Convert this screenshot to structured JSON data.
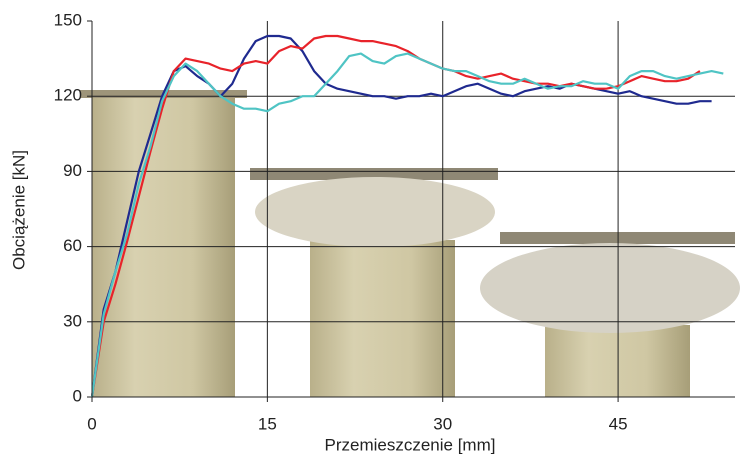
{
  "chart_data": {
    "type": "line",
    "xlabel": "Przemieszczenie [mm]",
    "ylabel": "Obciążenie [kN]",
    "x": [
      0,
      1,
      2,
      3,
      4,
      5,
      6,
      7,
      8,
      9,
      10,
      11,
      12,
      13,
      14,
      15,
      16,
      17,
      18,
      19,
      20,
      21,
      22,
      23,
      24,
      25,
      26,
      27,
      28,
      29,
      30,
      31,
      32,
      33,
      34,
      35,
      36,
      37,
      38,
      39,
      40,
      41,
      42,
      43,
      44,
      45,
      46,
      47,
      48,
      49,
      50,
      51,
      52,
      53,
      54,
      55
    ],
    "series": [
      {
        "color": "#1f2a8f",
        "values": [
          0,
          35,
          50,
          70,
          90,
          105,
          120,
          130,
          132,
          128,
          125,
          120,
          125,
          135,
          142,
          144,
          144,
          143,
          138,
          130,
          125,
          123,
          122,
          121,
          120,
          120,
          119,
          120,
          120,
          121,
          120,
          122,
          124,
          125,
          123,
          121,
          120,
          122,
          123,
          124,
          123,
          125,
          124,
          123,
          122,
          121,
          122,
          120,
          119,
          118,
          117,
          117,
          118,
          118,
          null,
          null
        ]
      },
      {
        "color": "#e8232a",
        "values": [
          0,
          30,
          45,
          62,
          80,
          98,
          115,
          130,
          135,
          134,
          133,
          131,
          130,
          133,
          134,
          133,
          138,
          140,
          139,
          143,
          144,
          144,
          143,
          142,
          142,
          141,
          140,
          138,
          135,
          133,
          131,
          130,
          128,
          127,
          128,
          129,
          127,
          126,
          125,
          125,
          124,
          125,
          124,
          123,
          123,
          124,
          126,
          128,
          127,
          126,
          126,
          127,
          130,
          null,
          null,
          null
        ]
      },
      {
        "color": "#4fc4c4",
        "values": [
          0,
          33,
          50,
          65,
          85,
          100,
          118,
          128,
          133,
          130,
          125,
          120,
          117,
          115,
          115,
          114,
          117,
          118,
          120,
          120,
          125,
          130,
          136,
          137,
          134,
          133,
          136,
          137,
          135,
          133,
          131,
          130,
          130,
          128,
          126,
          125,
          125,
          127,
          125,
          123,
          124,
          124,
          126,
          125,
          125,
          123,
          128,
          130,
          130,
          128,
          127,
          128,
          129,
          130,
          129,
          null
        ]
      }
    ],
    "xlim": [
      0,
      55
    ],
    "ylim": [
      0,
      150
    ],
    "xticks": [
      0,
      15,
      30,
      45
    ],
    "yticks": [
      0,
      30,
      60,
      90,
      120,
      150
    ],
    "grid": true
  }
}
